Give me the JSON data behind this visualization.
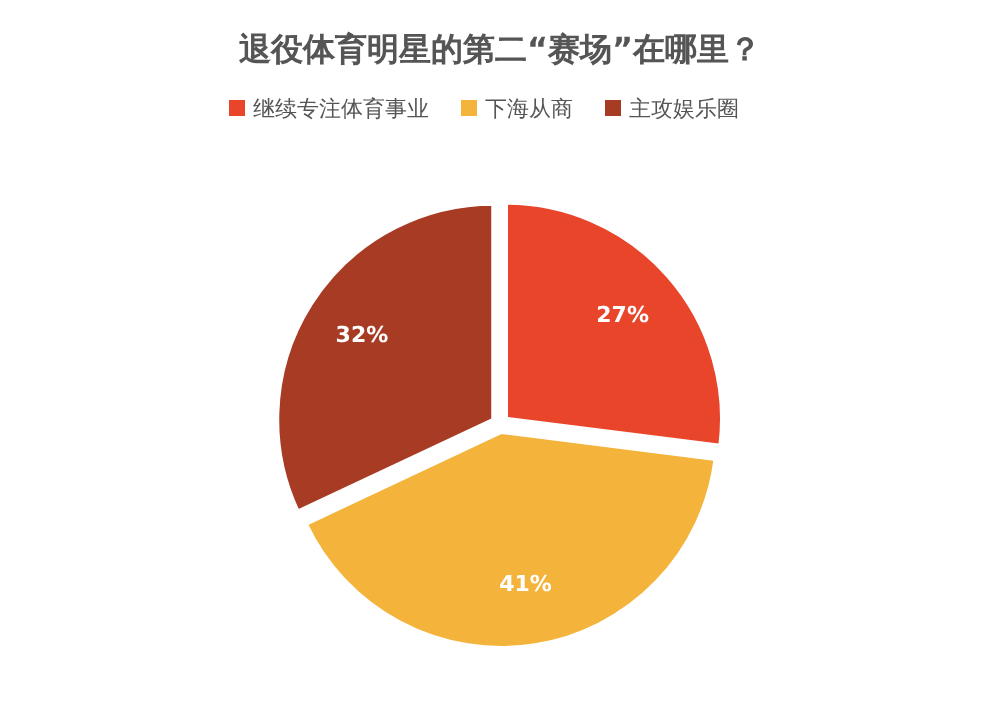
{
  "chart_data": {
    "type": "pie",
    "title": "退役体育明星的第二“赛场”在哪里？",
    "categories": [
      "继续专注体育事业",
      "下海从商",
      "主攻娱乐圈"
    ],
    "values": [
      27,
      41,
      32
    ],
    "colors": [
      "#e8452b",
      "#f4b33a",
      "#a83b23"
    ],
    "value_labels": [
      "27%",
      "41%",
      "32%"
    ],
    "legend": "top"
  }
}
